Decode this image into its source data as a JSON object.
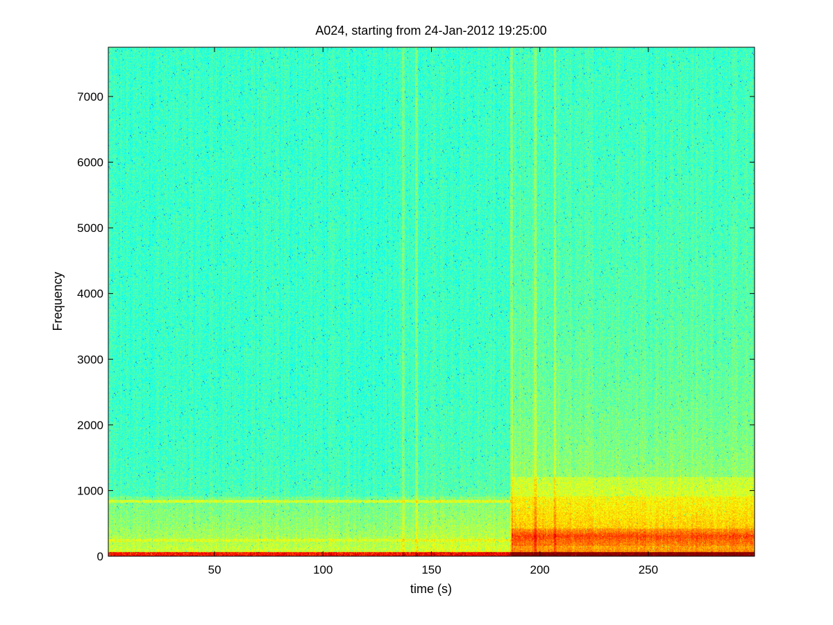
{
  "chart_data": {
    "type": "heatmap",
    "title": "A024, starting from 24-Jan-2012 19:25:00",
    "xlabel": "time (s)",
    "ylabel": "Frequency",
    "xlim": [
      1,
      299
    ],
    "ylim": [
      0,
      7750
    ],
    "xticks": [
      50,
      100,
      150,
      200,
      250
    ],
    "yticks": [
      0,
      1000,
      2000,
      3000,
      4000,
      5000,
      6000,
      7000
    ],
    "xtick_labels": [
      "50",
      "100",
      "150",
      "200",
      "250"
    ],
    "ytick_labels": [
      "0",
      "1000",
      "2000",
      "3000",
      "4000",
      "5000",
      "6000",
      "7000"
    ],
    "colormap": "jet",
    "grid": false,
    "features": {
      "tonal_line_hz": 830,
      "tonal_line_time_s": [
        1,
        187
      ],
      "vertical_transients_s": [
        137,
        143,
        187,
        198,
        207
      ],
      "elevated_energy_time_s": [
        187,
        299
      ],
      "elevated_energy_freq_hz": [
        0,
        3500
      ],
      "low_freq_band_hz": [
        0,
        60
      ]
    },
    "colors": {
      "background": "#40e8a8",
      "elevated": "#d8f040",
      "hot": "#c83010"
    }
  }
}
